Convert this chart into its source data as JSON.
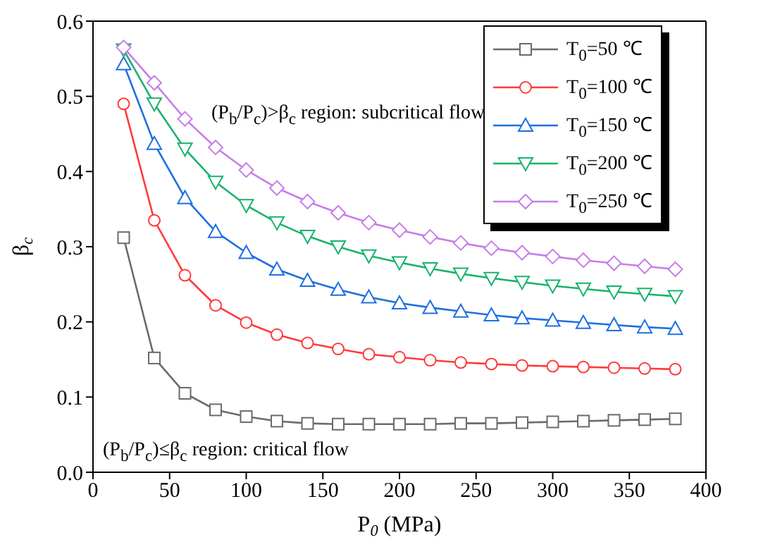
{
  "chart_data": {
    "type": "line",
    "xlabel": "P$_{0}$ (MPa)",
    "ylabel": "β$_{c}$",
    "x": [
      20,
      40,
      60,
      80,
      100,
      120,
      140,
      160,
      180,
      200,
      220,
      240,
      260,
      280,
      300,
      320,
      340,
      360,
      380
    ],
    "xlim": [
      0,
      400
    ],
    "xticks": [
      0,
      50,
      100,
      150,
      200,
      250,
      300,
      350,
      400
    ],
    "ylim": [
      0,
      0.6
    ],
    "yticks": [
      {
        "value": 0,
        "label": "0.0"
      },
      0.1,
      0.2,
      0.3,
      0.4,
      0.5,
      0.6
    ],
    "grid": false,
    "legend": "top right",
    "line_style": "solid",
    "annotations": [
      "(P$_{b}$/P$_{c}$)>β$_{c}$ region: subcritical flow",
      "(P$_{b}$/P$_{c}$)≤β$_{c}$ region: critical flow"
    ],
    "series": [
      {
        "name": "T$_{0}$=50 ℃",
        "color": "#6b6b6b",
        "marker": "square",
        "values": [
          0.312,
          0.152,
          0.105,
          0.083,
          0.074,
          0.068,
          0.065,
          0.064,
          0.064,
          0.064,
          0.064,
          0.065,
          0.065,
          0.066,
          0.067,
          0.068,
          0.069,
          0.07,
          0.071
        ]
      },
      {
        "name": "T$_{0}$=100 ℃",
        "color": "#ff3b3b",
        "marker": "circle",
        "values": [
          0.49,
          0.335,
          0.262,
          0.222,
          0.199,
          0.183,
          0.172,
          0.164,
          0.157,
          0.153,
          0.149,
          0.146,
          0.144,
          0.142,
          0.141,
          0.14,
          0.139,
          0.138,
          0.137
        ]
      },
      {
        "name": "T$_{0}$=150 ℃",
        "color": "#1f6fe0",
        "marker": "triangle",
        "values": [
          0.543,
          0.437,
          0.365,
          0.32,
          0.292,
          0.27,
          0.255,
          0.243,
          0.233,
          0.225,
          0.219,
          0.214,
          0.209,
          0.205,
          0.202,
          0.199,
          0.196,
          0.193,
          0.191
        ]
      },
      {
        "name": "T$_{0}$=200 ℃",
        "color": "#18b36b",
        "marker": "triangle-down",
        "values": [
          0.562,
          0.49,
          0.43,
          0.386,
          0.355,
          0.332,
          0.314,
          0.3,
          0.288,
          0.279,
          0.271,
          0.264,
          0.258,
          0.253,
          0.248,
          0.244,
          0.24,
          0.237,
          0.234
        ]
      },
      {
        "name": "T$_{0}$=250 ℃",
        "color": "#c77ee8",
        "marker": "diamond",
        "values": [
          0.565,
          0.518,
          0.47,
          0.432,
          0.402,
          0.378,
          0.36,
          0.345,
          0.332,
          0.322,
          0.313,
          0.305,
          0.298,
          0.292,
          0.287,
          0.282,
          0.278,
          0.274,
          0.27
        ]
      }
    ]
  }
}
